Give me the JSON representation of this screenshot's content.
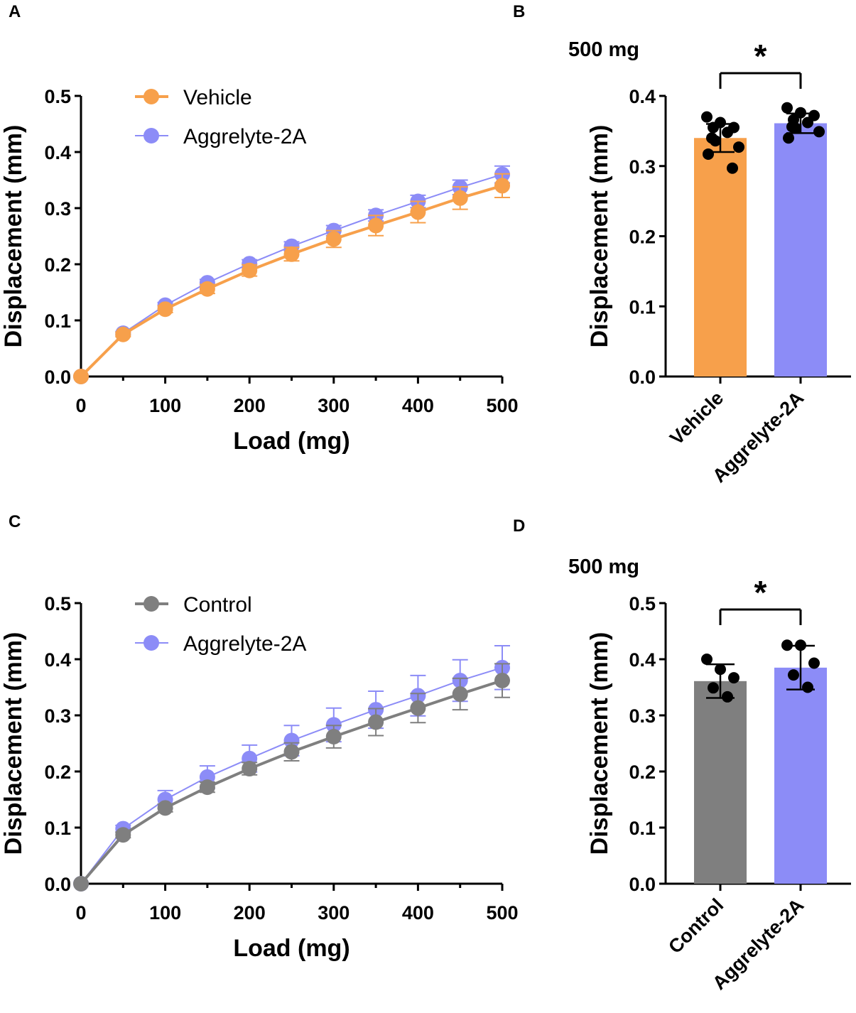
{
  "chart_data": [
    {
      "panel": "A",
      "type": "line",
      "xlabel": "Load (mg)",
      "ylabel": "Displacement (mm)",
      "xlim": [
        0,
        500
      ],
      "ylim": [
        0,
        0.5
      ],
      "xticks": [
        "0",
        "100",
        "200",
        "300",
        "400",
        "500"
      ],
      "yticks": [
        "0.0",
        "0.1",
        "0.2",
        "0.3",
        "0.4",
        "0.5"
      ],
      "grid": false,
      "legend_position": "top-left",
      "x": [
        0,
        50,
        100,
        150,
        200,
        250,
        300,
        350,
        400,
        450,
        500
      ],
      "series": [
        {
          "name": "Aggrelyte-2A",
          "color": "#8c8cf7",
          "values": [
            0,
            0.077,
            0.127,
            0.167,
            0.201,
            0.232,
            0.26,
            0.287,
            0.312,
            0.337,
            0.36
          ],
          "errors": [
            0,
            0.003,
            0.005,
            0.006,
            0.007,
            0.008,
            0.009,
            0.01,
            0.011,
            0.013,
            0.015
          ]
        },
        {
          "name": "Vehicle",
          "color": "#f7a04b",
          "values": [
            0,
            0.075,
            0.12,
            0.156,
            0.189,
            0.218,
            0.245,
            0.269,
            0.293,
            0.318,
            0.34
          ],
          "errors": [
            0,
            0.004,
            0.006,
            0.008,
            0.01,
            0.012,
            0.015,
            0.018,
            0.019,
            0.02,
            0.021
          ]
        }
      ]
    },
    {
      "panel": "B",
      "type": "bar",
      "title": "500 mg",
      "ylabel": "Displacement (mm)",
      "ylim": [
        0,
        0.4
      ],
      "yticks": [
        "0.0",
        "0.1",
        "0.2",
        "0.3",
        "0.4"
      ],
      "categories": [
        "Vehicle",
        "Aggrelyte-2A"
      ],
      "values": [
        0.34,
        0.361
      ],
      "errors": [
        0.02,
        0.014
      ],
      "colors": [
        "#f7a04b",
        "#8c8cf7"
      ],
      "points": [
        [
          0.37,
          0.362,
          0.355,
          0.355,
          0.348,
          0.34,
          0.336,
          0.327,
          0.317,
          0.297
        ],
        [
          0.383,
          0.376,
          0.372,
          0.366,
          0.362,
          0.356,
          0.354,
          0.349,
          0.34
        ]
      ],
      "significance": "*"
    },
    {
      "panel": "C",
      "type": "line",
      "xlabel": "Load (mg)",
      "ylabel": "Displacement (mm)",
      "xlim": [
        0,
        500
      ],
      "ylim": [
        0,
        0.5
      ],
      "xticks": [
        "0",
        "100",
        "200",
        "300",
        "400",
        "500"
      ],
      "yticks": [
        "0.0",
        "0.1",
        "0.2",
        "0.3",
        "0.4",
        "0.5"
      ],
      "grid": false,
      "legend_position": "top-left",
      "x": [
        0,
        50,
        100,
        150,
        200,
        250,
        300,
        350,
        400,
        450,
        500
      ],
      "series": [
        {
          "name": "Aggrelyte-2A",
          "color": "#8c8cf7",
          "values": [
            0,
            0.098,
            0.15,
            0.19,
            0.223,
            0.255,
            0.283,
            0.31,
            0.335,
            0.362,
            0.385
          ],
          "errors": [
            0,
            0.006,
            0.016,
            0.02,
            0.024,
            0.027,
            0.03,
            0.033,
            0.036,
            0.037,
            0.039
          ]
        },
        {
          "name": "Control",
          "color": "#7f7f7f",
          "values": [
            0,
            0.087,
            0.135,
            0.172,
            0.205,
            0.235,
            0.262,
            0.288,
            0.313,
            0.338,
            0.362
          ],
          "errors": [
            0,
            0.005,
            0.007,
            0.009,
            0.011,
            0.016,
            0.02,
            0.024,
            0.026,
            0.028,
            0.03
          ]
        }
      ]
    },
    {
      "panel": "D",
      "type": "bar",
      "title": "500 mg",
      "ylabel": "Displacement (mm)",
      "ylim": [
        0,
        0.5
      ],
      "yticks": [
        "0.0",
        "0.1",
        "0.2",
        "0.3",
        "0.4",
        "0.5"
      ],
      "categories": [
        "Control",
        "Aggrelyte-2A"
      ],
      "values": [
        0.361,
        0.385
      ],
      "errors": [
        0.03,
        0.039
      ],
      "colors": [
        "#7f7f7f",
        "#8c8cf7"
      ],
      "points": [
        [
          0.4,
          0.382,
          0.367,
          0.349,
          0.333
        ],
        [
          0.425,
          0.425,
          0.393,
          0.372,
          0.35
        ]
      ],
      "significance": "*"
    }
  ]
}
